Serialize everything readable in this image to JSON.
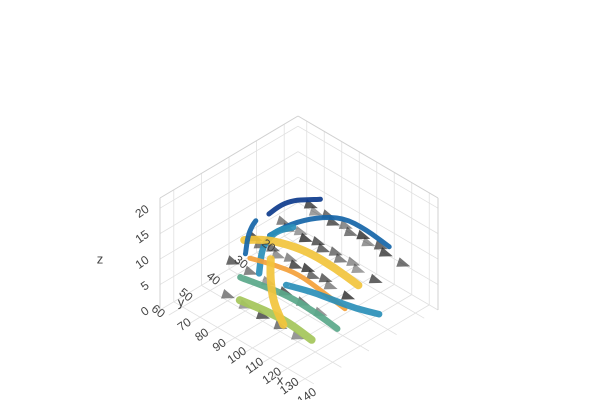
{
  "chart_data": {
    "type": "3d-streamtube-cone",
    "title": "",
    "axes": {
      "x": {
        "label": "x",
        "ticks": [
          "70",
          "80",
          "90",
          "100",
          "110",
          "120",
          "130",
          "140"
        ],
        "range": [
          65,
          145
        ]
      },
      "y": {
        "label": "y",
        "ticks": [
          "20",
          "30",
          "40",
          "50",
          "60"
        ],
        "range": [
          15,
          65
        ]
      },
      "z": {
        "label": "z",
        "ticks": [
          "0",
          "5",
          "10",
          "15",
          "20"
        ],
        "range": [
          0,
          22
        ]
      }
    },
    "grid": true,
    "legend": "none",
    "colorscale": [
      "#0d3b8c",
      "#1565a8",
      "#2a8fb8",
      "#5aa88a",
      "#a4c65a",
      "#f2c43c",
      "#f4a13a",
      "#d9442b"
    ],
    "cone_color": "#2b2b2b",
    "tubes": [
      {
        "color": "#1565a8",
        "path": [
          [
            125,
            20,
            10
          ],
          [
            115,
            22,
            12
          ],
          [
            105,
            24,
            13
          ],
          [
            95,
            27,
            12
          ],
          [
            88,
            32,
            11
          ],
          [
            85,
            38,
            10
          ]
        ]
      },
      {
        "color": "#2a8fb8",
        "path": [
          [
            78,
            25,
            6
          ],
          [
            80,
            32,
            8
          ],
          [
            84,
            38,
            9
          ],
          [
            90,
            44,
            10
          ],
          [
            98,
            50,
            9
          ]
        ]
      },
      {
        "color": "#f2c43c",
        "path": [
          [
            120,
            28,
            4
          ],
          [
            110,
            30,
            6
          ],
          [
            100,
            33,
            8
          ],
          [
            92,
            36,
            9
          ],
          [
            86,
            40,
            10
          ],
          [
            80,
            44,
            10
          ]
        ]
      },
      {
        "color": "#f4a13a",
        "path": [
          [
            125,
            36,
            3
          ],
          [
            115,
            38,
            5
          ],
          [
            105,
            40,
            7
          ],
          [
            96,
            43,
            8
          ],
          [
            88,
            47,
            9
          ]
        ]
      },
      {
        "color": "#5aa88a",
        "path": [
          [
            130,
            42,
            2
          ],
          [
            120,
            44,
            4
          ],
          [
            110,
            47,
            6
          ],
          [
            100,
            50,
            7
          ],
          [
            92,
            53,
            8
          ]
        ]
      },
      {
        "color": "#a4c65a",
        "path": [
          [
            128,
            50,
            2
          ],
          [
            118,
            52,
            4
          ],
          [
            108,
            54,
            5
          ],
          [
            98,
            57,
            6
          ]
        ]
      },
      {
        "color": "#0d3b8c",
        "path": [
          [
            72,
            30,
            9
          ],
          [
            76,
            28,
            11
          ],
          [
            80,
            26,
            12
          ],
          [
            86,
            25,
            13
          ],
          [
            92,
            24,
            14
          ]
        ]
      },
      {
        "color": "#2a8fb8",
        "path": [
          [
            135,
            30,
            2
          ],
          [
            128,
            34,
            3
          ],
          [
            120,
            37,
            4
          ],
          [
            112,
            40,
            5
          ],
          [
            104,
            44,
            6
          ]
        ]
      },
      {
        "color": "#f2c43c",
        "path": [
          [
            115,
            52,
            3
          ],
          [
            106,
            50,
            5
          ],
          [
            98,
            46,
            7
          ],
          [
            92,
            42,
            8
          ]
        ]
      },
      {
        "color": "#1565a8",
        "path": [
          [
            74,
            36,
            10
          ],
          [
            78,
            40,
            11
          ],
          [
            82,
            44,
            11
          ],
          [
            87,
            48,
            10
          ]
        ]
      }
    ],
    "cones": [
      [
        80,
        20,
        8
      ],
      [
        90,
        20,
        8
      ],
      [
        100,
        20,
        8
      ],
      [
        110,
        20,
        8
      ],
      [
        120,
        20,
        8
      ],
      [
        130,
        20,
        8
      ],
      [
        80,
        30,
        8
      ],
      [
        90,
        30,
        8
      ],
      [
        100,
        30,
        8
      ],
      [
        110,
        30,
        8
      ],
      [
        120,
        30,
        8
      ],
      [
        130,
        30,
        8
      ],
      [
        80,
        40,
        8
      ],
      [
        90,
        40,
        8
      ],
      [
        100,
        40,
        8
      ],
      [
        110,
        40,
        8
      ],
      [
        120,
        40,
        8
      ],
      [
        130,
        40,
        8
      ],
      [
        80,
        50,
        8
      ],
      [
        90,
        50,
        8
      ],
      [
        100,
        50,
        8
      ],
      [
        110,
        50,
        8
      ],
      [
        120,
        50,
        8
      ],
      [
        130,
        50,
        8
      ],
      [
        85,
        25,
        12
      ],
      [
        95,
        25,
        12
      ],
      [
        105,
        25,
        12
      ],
      [
        115,
        25,
        12
      ],
      [
        125,
        25,
        12
      ],
      [
        85,
        35,
        12
      ],
      [
        95,
        35,
        12
      ],
      [
        105,
        35,
        12
      ],
      [
        115,
        35,
        12
      ],
      [
        125,
        35,
        12
      ],
      [
        85,
        45,
        12
      ],
      [
        95,
        45,
        12
      ],
      [
        105,
        45,
        12
      ],
      [
        115,
        45,
        12
      ],
      [
        125,
        45,
        12
      ],
      [
        85,
        55,
        4
      ],
      [
        95,
        55,
        4
      ],
      [
        105,
        55,
        4
      ],
      [
        115,
        55,
        4
      ],
      [
        125,
        55,
        4
      ]
    ]
  }
}
